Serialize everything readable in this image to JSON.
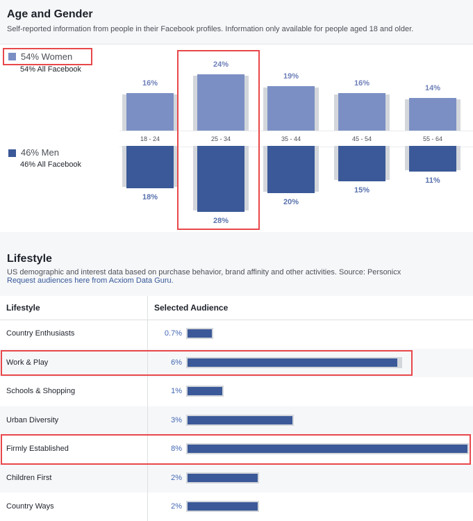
{
  "age_gender": {
    "title": "Age and Gender",
    "subtitle": "Self-reported information from people in their Facebook profiles. Information only available for people aged 18 and older.",
    "women": {
      "label": "54% Women",
      "sub": "54% All Facebook",
      "color": "#7b8fc4"
    },
    "men": {
      "label": "46% Men",
      "sub": "46% All Facebook",
      "color": "#3b5998"
    }
  },
  "lifestyle": {
    "title": "Lifestyle",
    "subtitle": "US demographic and interest data based on purchase behavior, brand affinity and other activities. Source: Personicx",
    "link": "Request audiences here from Acxiom Data Guru.",
    "col_lifestyle": "Lifestyle",
    "col_audience": "Selected Audience",
    "rows": [
      {
        "name": "Country Enthusiasts",
        "pct": "0.7%",
        "value": 0.7,
        "all": 0.7
      },
      {
        "name": "Work & Play",
        "pct": "6%",
        "value": 6,
        "all": 6.1
      },
      {
        "name": "Schools & Shopping",
        "pct": "1%",
        "value": 1,
        "all": 1
      },
      {
        "name": "Urban Diversity",
        "pct": "3%",
        "value": 3,
        "all": 3
      },
      {
        "name": "Firmly Established",
        "pct": "8%",
        "value": 8,
        "all": 8
      },
      {
        "name": "Children First",
        "pct": "2%",
        "value": 2,
        "all": 2
      },
      {
        "name": "Country Ways",
        "pct": "2%",
        "value": 2,
        "all": 2
      }
    ]
  },
  "chart_data": {
    "type": "bar",
    "categories": [
      "18 - 24",
      "25 - 34",
      "35 - 44",
      "45 - 54",
      "55 - 64"
    ],
    "series": [
      {
        "name": "Women",
        "values": [
          16,
          24,
          19,
          16,
          14
        ],
        "labels": [
          "16%",
          "24%",
          "19%",
          "16%",
          "14%"
        ]
      },
      {
        "name": "Men",
        "values": [
          18,
          28,
          20,
          15,
          11
        ],
        "labels": [
          "18%",
          "28%",
          "20%",
          "15%",
          "11%"
        ]
      }
    ],
    "ymax": 28
  }
}
